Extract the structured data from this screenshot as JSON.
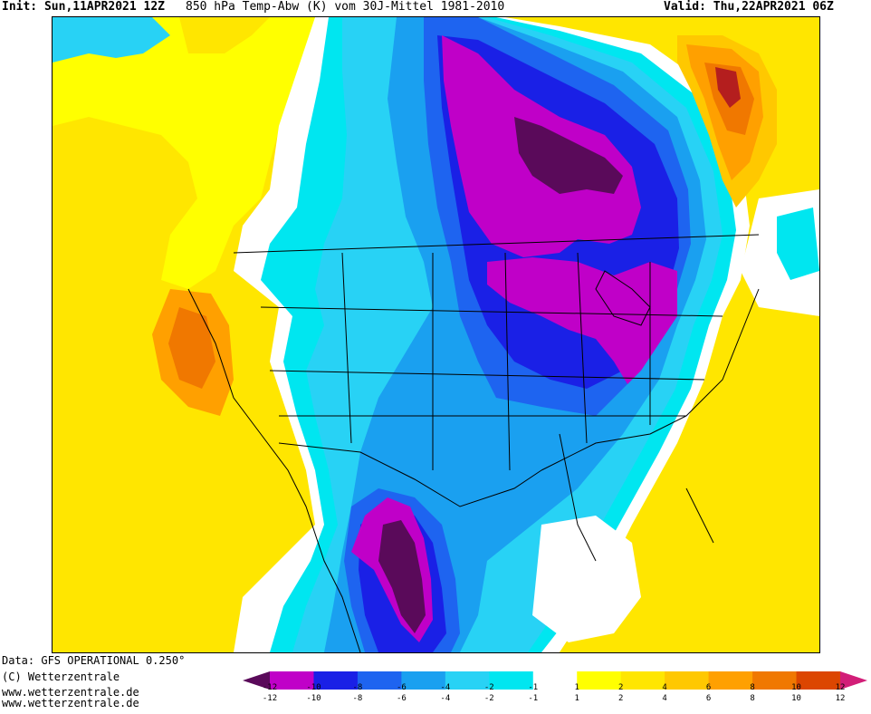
{
  "header": {
    "init_label": "Init: Sun,11APR2021 12Z",
    "title": "850 hPa Temp-Abw (K) vom 30J-Mittel 1981-2010",
    "valid_label": "Valid: Thu,22APR2021 06Z"
  },
  "credits": {
    "data_source": "Data: GFS OPERATIONAL 0.250°",
    "copyright": "(C) Wetterzentrale",
    "url1": "www.wetterzentrale.de",
    "url2": "www.wetterzentrale.de"
  },
  "colors": {
    "m12": "#5a0a5a",
    "m10": "#c000c8",
    "m8": "#1a20e6",
    "m6": "#1e64f0",
    "m4": "#1aa0f0",
    "m2": "#28d2f5",
    "m1": "#00e6f0",
    "zero": "#ffffff",
    "p1": "#ffff00",
    "p2": "#ffe600",
    "p4": "#ffc800",
    "p6": "#ffa000",
    "p8": "#f07800",
    "p10": "#dc4600",
    "p12": "#b41e1e",
    "tip_right": "#d21e78"
  },
  "legend": {
    "top_labels": [
      "-12",
      "-10",
      "-8",
      "-6",
      "-4",
      "-2",
      "-1",
      "1",
      "2",
      "4",
      "6",
      "8",
      "10",
      "12"
    ],
    "bottom_labels": [
      "-12",
      "-10",
      "-8",
      "-6",
      "-4",
      "-2",
      "-1",
      "1",
      "2",
      "4",
      "6",
      "8",
      "10",
      "12"
    ]
  },
  "map": {
    "variable": "850 hPa temperature anomaly (K)",
    "region": "North America"
  }
}
